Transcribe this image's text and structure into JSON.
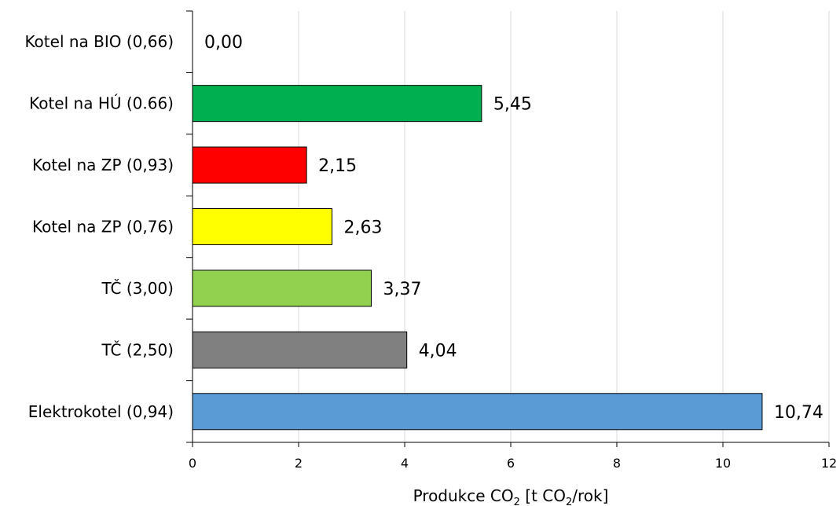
{
  "chart_data": {
    "type": "bar",
    "orientation": "horizontal",
    "categories": [
      "Kotel na BIO (0,66)",
      "Kotel na HÚ (0.66)",
      "Kotel na ZP (0,93)",
      "Kotel na ZP (0,76)",
      "TČ (3,00)",
      "TČ (2,50)",
      "Elektrokotel (0,94)"
    ],
    "values": [
      0.0,
      5.45,
      2.15,
      2.63,
      3.37,
      4.04,
      10.74
    ],
    "value_labels": [
      "0,00",
      "5,45",
      "2,15",
      "2,63",
      "3,37",
      "4,04",
      "10,74"
    ],
    "colors": [
      "#ffffff",
      "#00b050",
      "#ff0000",
      "#ffff00",
      "#92d050",
      "#808080",
      "#5b9bd5"
    ],
    "xlabel": {
      "main": "Produkce CO",
      "sub1": "2",
      "mid": " [t CO",
      "sub2": "2",
      "end": "/rok]"
    },
    "ylabel": "",
    "xlim": [
      0,
      12
    ],
    "xticks": [
      "0",
      "2",
      "4",
      "6",
      "8",
      "10",
      "12"
    ],
    "grid": "vertical",
    "legend": "none"
  }
}
